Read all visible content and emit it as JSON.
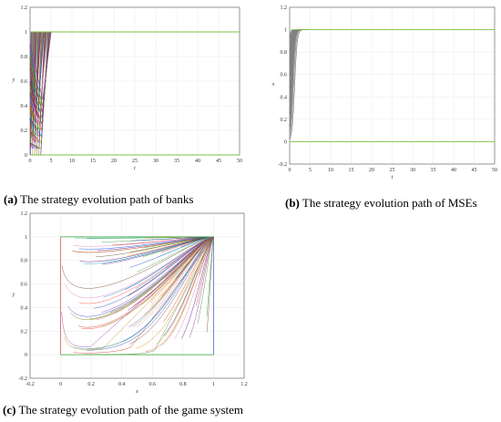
{
  "chart_data": [
    {
      "type": "line",
      "panel_id": "a",
      "caption_letter": "(a)",
      "caption_text": " The strategy evolution path of banks",
      "xlabel": "t",
      "ylabel": "y",
      "xlim": [
        0,
        50
      ],
      "ylim": [
        0,
        1.2
      ],
      "xticks": [
        0,
        5,
        10,
        15,
        20,
        25,
        30,
        35,
        40,
        45,
        50
      ],
      "yticks": [
        0,
        0.2,
        0.4,
        0.6,
        0.8,
        1,
        1.2
      ],
      "ytick_labels": [
        "0",
        "0.2",
        "0.4",
        "0.6",
        "0.8",
        "1",
        "1.2"
      ],
      "grid": true,
      "description_of_series": "many trajectories from y0 in [0,1]; all go to y=1 within t≈0–5, while a small set stays at y=0",
      "curve_count": 60,
      "transition_t_range": [
        0.2,
        5
      ],
      "stable_values": [
        0,
        1
      ]
    },
    {
      "type": "line",
      "panel_id": "b",
      "caption_letter": "(b)",
      "caption_text": " The strategy evolution path of MSEs",
      "xlabel": "t",
      "ylabel": "x",
      "xlim": [
        0,
        50
      ],
      "ylim": [
        -0.2,
        1.2
      ],
      "xticks": [
        0,
        5,
        10,
        15,
        20,
        25,
        30,
        35,
        40,
        45,
        50
      ],
      "yticks": [
        -0.2,
        0,
        0.2,
        0.4,
        0.6,
        0.8,
        1,
        1.2
      ],
      "ytick_labels": [
        "-0.2",
        "0",
        "0.2",
        "0.4",
        "0.6",
        "0.8",
        "1",
        "1.2"
      ],
      "grid": true,
      "description_of_series": "many trajectories with x0 in [0,1] rise to x=1 within t≈0–4; a baseline stays at x=0",
      "curve_count": 60,
      "stable_values": [
        0,
        1
      ]
    },
    {
      "type": "line",
      "panel_id": "c",
      "caption_letter": "(c)",
      "caption_text": " The strategy evolution path of the game system",
      "xlabel": "x",
      "ylabel": "y",
      "xlim": [
        -0.2,
        1.2
      ],
      "ylim": [
        -0.2,
        1.2
      ],
      "xticks": [
        -0.2,
        0,
        0.2,
        0.4,
        0.6,
        0.8,
        1,
        1.2
      ],
      "xtick_labels": [
        "-0.2",
        "0",
        "0.2",
        "0.4",
        "0.6",
        "0.8",
        "1",
        "1.2"
      ],
      "yticks": [
        -0.2,
        0,
        0.2,
        0.4,
        0.6,
        0.8,
        1,
        1.2
      ],
      "ytick_labels": [
        "-0.2",
        "0",
        "0.2",
        "0.4",
        "0.6",
        "0.8",
        "1",
        "1.2"
      ],
      "grid": true,
      "description_of_series": "dense phase-plane trajectories filling the unit square, all converging toward (1,1)",
      "curve_count": 90,
      "converge_point": [
        1,
        1
      ]
    }
  ]
}
